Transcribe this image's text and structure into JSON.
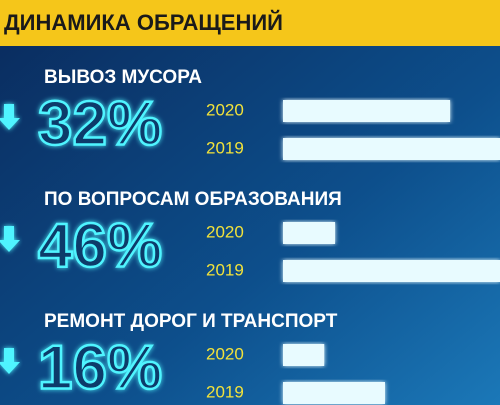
{
  "header": {
    "title": "ДИНАМИКА ОБРАЩЕНИЙ"
  },
  "chart_data": [
    {
      "type": "bar",
      "orientation": "horizontal",
      "title": "ВЫВОЗ МУСОРА",
      "annotation": "32%",
      "categories": [
        "2020",
        "2019"
      ],
      "values": [
        77,
        100
      ],
      "xlim": [
        0,
        100
      ],
      "color": "#e8fbff"
    },
    {
      "type": "bar",
      "orientation": "horizontal",
      "title": "ПО ВОПРОСАМ ОБРАЗОВАНИЯ",
      "annotation": "46%",
      "categories": [
        "2020",
        "2019"
      ],
      "values": [
        24,
        100
      ],
      "xlim": [
        0,
        100
      ],
      "color": "#e8fbff"
    },
    {
      "type": "bar",
      "orientation": "horizontal",
      "title": "РЕМОНТ ДОРОГ И ТРАНСПОРТ",
      "annotation": "16%",
      "categories": [
        "2020",
        "2019"
      ],
      "values": [
        19,
        47
      ],
      "xlim": [
        0,
        100
      ],
      "color": "#e8fbff"
    }
  ]
}
